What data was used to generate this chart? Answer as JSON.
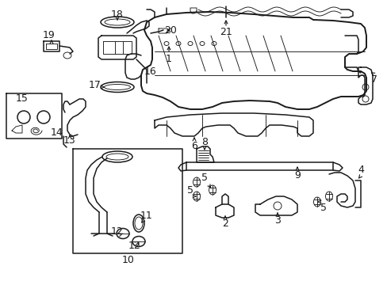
{
  "bg_color": "#ffffff",
  "line_color": "#1a1a1a",
  "fig_width": 4.89,
  "fig_height": 3.6,
  "dpi": 100,
  "label_fs": 8,
  "lw_main": 1.1,
  "lw_thin": 0.65,
  "lw_thick": 1.4
}
